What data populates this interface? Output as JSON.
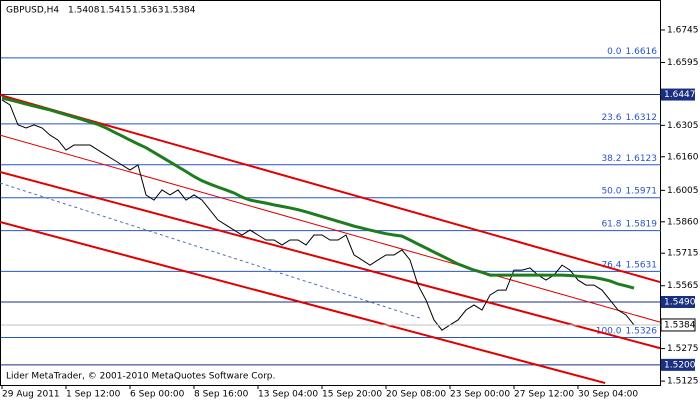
{
  "chart_data": {
    "type": "line",
    "symbol": "GBPUSD,H4",
    "ohlc": [
      1.5408,
      1.5415,
      1.5363,
      1.5384
    ],
    "footer": "Lider MetaTrader, © 2001-2010 MetaQuotes Software Corp.",
    "categories": [
      "29 Aug 2011",
      null,
      null,
      null,
      null,
      null,
      null,
      null,
      "1 Sep 12:00",
      null,
      null,
      null,
      null,
      null,
      null,
      null,
      "6 Sep 00:00",
      null,
      null,
      null,
      null,
      null,
      null,
      null,
      "8 Sep 16:00",
      null,
      null,
      null,
      null,
      null,
      null,
      null,
      "13 Sep 04:00",
      null,
      null,
      null,
      null,
      null,
      null,
      null,
      "15 Sep 20:00",
      null,
      null,
      null,
      null,
      null,
      null,
      null,
      "20 Sep 08:00",
      null,
      null,
      null,
      null,
      null,
      null,
      null,
      "23 Sep 00:00",
      null,
      null,
      null,
      null,
      null,
      null,
      null,
      "27 Sep 12:00",
      null,
      null,
      null,
      null,
      null,
      null,
      null,
      "30 Sep 04:00",
      null,
      null,
      null,
      null,
      null,
      null,
      null
    ],
    "series": [
      {
        "color": "#000000",
        "width": 1,
        "values": [
          1.6422,
          1.6399,
          1.6307,
          1.6293,
          1.6307,
          1.6293,
          1.626,
          1.6237,
          1.6191,
          1.6214,
          1.6214,
          1.6214,
          1.6191,
          1.6168,
          1.6145,
          1.6122,
          1.6099,
          1.6122,
          1.5984,
          1.596,
          1.6007,
          1.5984,
          1.6007,
          1.596,
          1.5984,
          1.596,
          1.5914,
          1.5868,
          1.5845,
          1.5822,
          1.5799,
          1.5822,
          1.5799,
          1.5776,
          1.5776,
          1.5753,
          1.5776,
          1.5776,
          1.5753,
          1.5799,
          1.5799,
          1.5776,
          1.5776,
          1.5799,
          1.5707,
          1.5684,
          1.566,
          1.5684,
          1.5707,
          1.5707,
          1.573,
          1.5684,
          1.5568,
          1.5499,
          1.5407,
          1.536,
          1.5384,
          1.5407,
          1.5453,
          1.5476,
          1.5453,
          1.5522,
          1.5545,
          1.5545,
          1.5637,
          1.5637,
          1.5647,
          1.5614,
          1.5591,
          1.5614,
          1.566,
          1.5637,
          1.5591,
          1.5568,
          1.5568,
          1.5545,
          1.5499,
          1.5453,
          1.543,
          1.5384
        ]
      },
      {
        "color": "#1e7b1e",
        "width": 3,
        "values": [
          1.6431,
          1.6422,
          1.6413,
          1.6403,
          1.6394,
          1.6385,
          1.6376,
          1.6365,
          1.6354,
          1.6343,
          1.6332,
          1.632,
          1.6309,
          1.6293,
          1.6274,
          1.6256,
          1.6237,
          1.6219,
          1.6202,
          1.618,
          1.6158,
          1.6136,
          1.6114,
          1.6092,
          1.6069,
          1.6049,
          1.6034,
          1.602,
          1.6007,
          1.5993,
          1.5974,
          1.596,
          1.5953,
          1.5946,
          1.5938,
          1.5931,
          1.5924,
          1.5916,
          1.5906,
          1.5895,
          1.5884,
          1.5873,
          1.5862,
          1.5851,
          1.584,
          1.5831,
          1.5822,
          1.5813,
          1.5805,
          1.5799,
          1.5794,
          1.5776,
          1.5757,
          1.5739,
          1.572,
          1.5702,
          1.5684,
          1.5665,
          1.5651,
          1.5637,
          1.5627,
          1.5614,
          1.5614,
          1.5614,
          1.5614,
          1.5614,
          1.5614,
          1.5614,
          1.5614,
          1.5614,
          1.5614,
          1.5612,
          1.5609,
          1.5606,
          1.5603,
          1.5596,
          1.5587,
          1.5573,
          1.5564,
          1.5554
        ]
      }
    ],
    "trend_lines": [
      {
        "color": "#e00000",
        "width": 2,
        "dash": false,
        "x": [
          -0.25,
          82.25
        ],
        "y": [
          1.6445,
          1.5582
        ]
      },
      {
        "color": "#e00000",
        "width": 1,
        "dash": false,
        "x": [
          -0.25,
          82.25
        ],
        "y": [
          1.626,
          1.5397
        ]
      },
      {
        "color": "#e00000",
        "width": 2,
        "dash": false,
        "x": [
          -0.25,
          82.25
        ],
        "y": [
          1.609,
          1.5277
        ]
      },
      {
        "color": "#e00000",
        "width": 2,
        "dash": false,
        "x": [
          -0.25,
          75.4
        ],
        "y": [
          1.5859,
          1.5116
        ]
      },
      {
        "color": "#4a6fb5",
        "width": 1,
        "dash": true,
        "x": [
          -0.25,
          52.25
        ],
        "y": [
          1.6039,
          1.5416
        ]
      }
    ],
    "fib_levels": [
      {
        "level": "0.0",
        "price": 1.6616
      },
      {
        "level": "23.6",
        "price": 1.6312
      },
      {
        "level": "38.2",
        "price": 1.6123
      },
      {
        "level": "50.0",
        "price": 1.5971
      },
      {
        "level": "61.8",
        "price": 1.5819
      },
      {
        "level": "76.4",
        "price": 1.5631
      },
      {
        "level": "100.0",
        "price": 1.5326
      }
    ],
    "h_lines": [
      1.6447,
      {
        "value": 1.549,
        "label": "1.5490"
      },
      {
        "value": 1.52,
        "label": "1.5200"
      }
    ],
    "ylim": [
      1.5107,
      1.6874
    ],
    "yticks": [
      1.6745,
      1.6595,
      1.6305,
      {
        "value": 1.616,
        "label": "1.6160"
      },
      1.6005,
      {
        "value": 1.586,
        "label": "1.5860"
      },
      1.5715,
      1.5565,
      1.5275,
      1.5125
    ]
  }
}
